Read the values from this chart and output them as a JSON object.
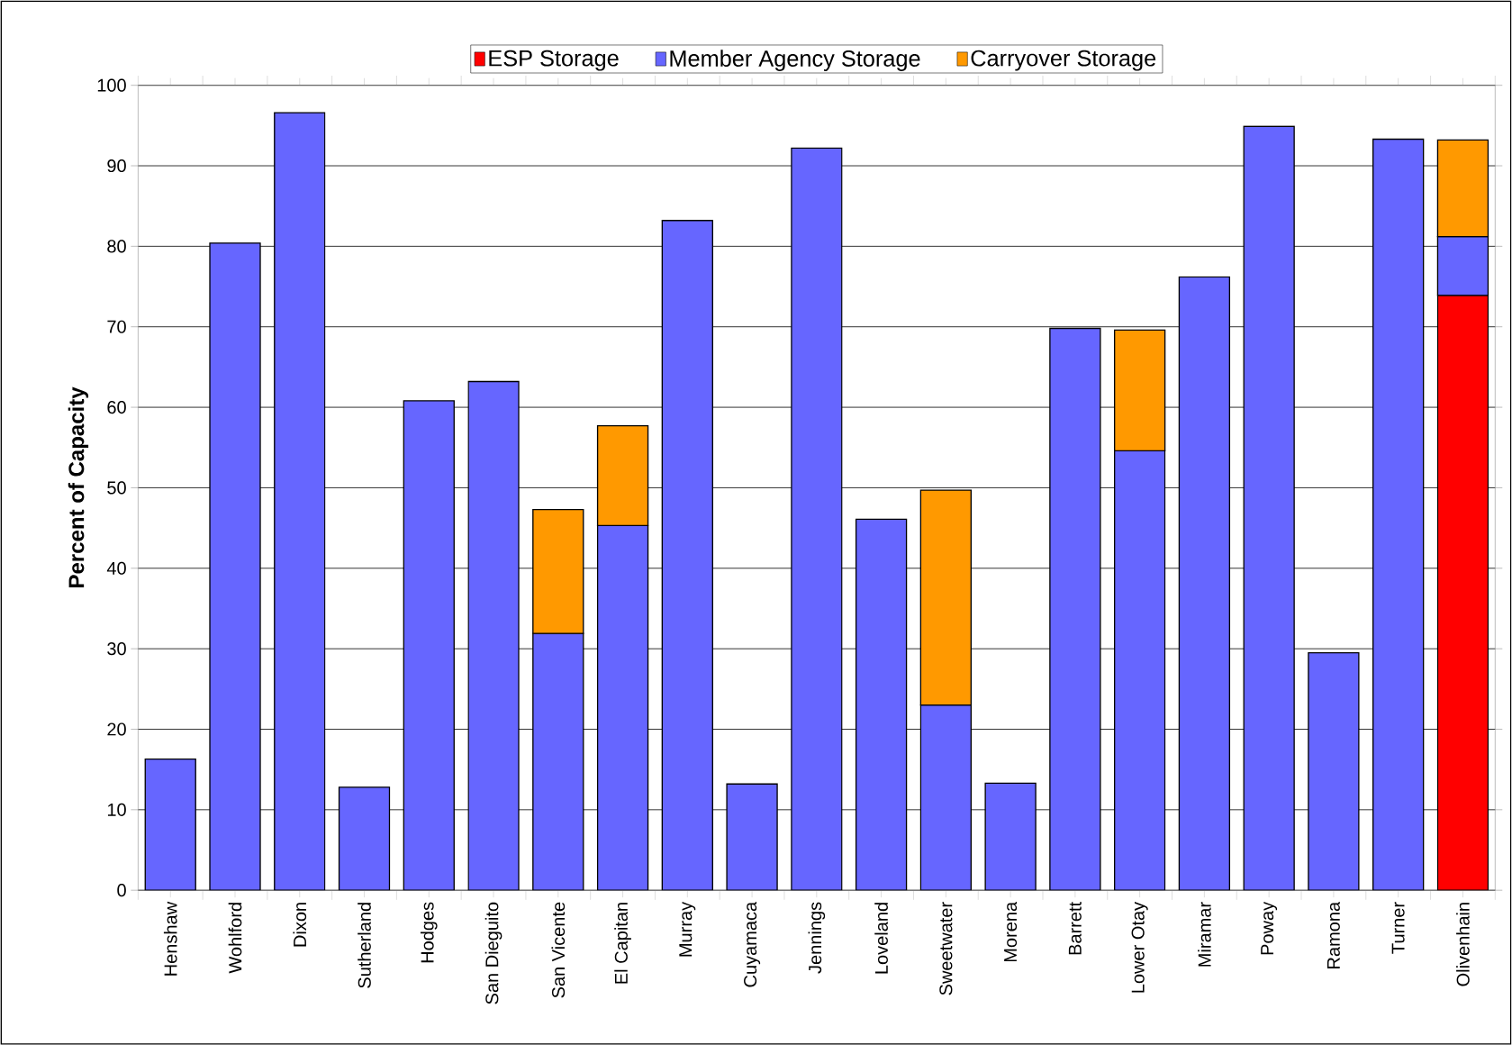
{
  "chart_data": {
    "type": "bar",
    "stacked": true,
    "ylabel": "Percent of Capacity",
    "categories": [
      "Henshaw",
      "Wohlford",
      "Dixon",
      "Sutherland",
      "Hodges",
      "San Dieguito",
      "San Vicente",
      "El Capitan",
      "Murray",
      "Cuyamaca",
      "Jennings",
      "Loveland",
      "Sweetwater",
      "Morena",
      "Barrett",
      "Lower Otay",
      "Miramar",
      "Poway",
      "Ramona",
      "Turner",
      "Olivenhain"
    ],
    "series": [
      {
        "name": "ESP Storage",
        "color": "#ff0000",
        "values": [
          null,
          null,
          null,
          null,
          null,
          null,
          null,
          null,
          null,
          null,
          null,
          null,
          null,
          null,
          null,
          null,
          null,
          null,
          null,
          null,
          73.9
        ]
      },
      {
        "name": "Member Agency Storage",
        "color": "#6666ff",
        "values": [
          16.3,
          80.4,
          96.6,
          12.8,
          60.8,
          63.2,
          31.9,
          45.3,
          83.2,
          13.2,
          92.2,
          46.1,
          23.0,
          13.3,
          69.8,
          54.6,
          76.2,
          94.9,
          29.5,
          93.3,
          7.3
        ]
      },
      {
        "name": "Carryover Storage",
        "color": "#ff9900",
        "values": [
          null,
          null,
          null,
          null,
          null,
          null,
          15.4,
          12.4,
          null,
          null,
          null,
          null,
          26.7,
          null,
          null,
          15.0,
          null,
          null,
          null,
          null,
          12.0
        ]
      }
    ],
    "ylim": [
      0,
      100
    ],
    "yticks": [
      0,
      10,
      20,
      30,
      40,
      50,
      60,
      70,
      80,
      90,
      100
    ],
    "grid": "y",
    "legend": "top"
  }
}
